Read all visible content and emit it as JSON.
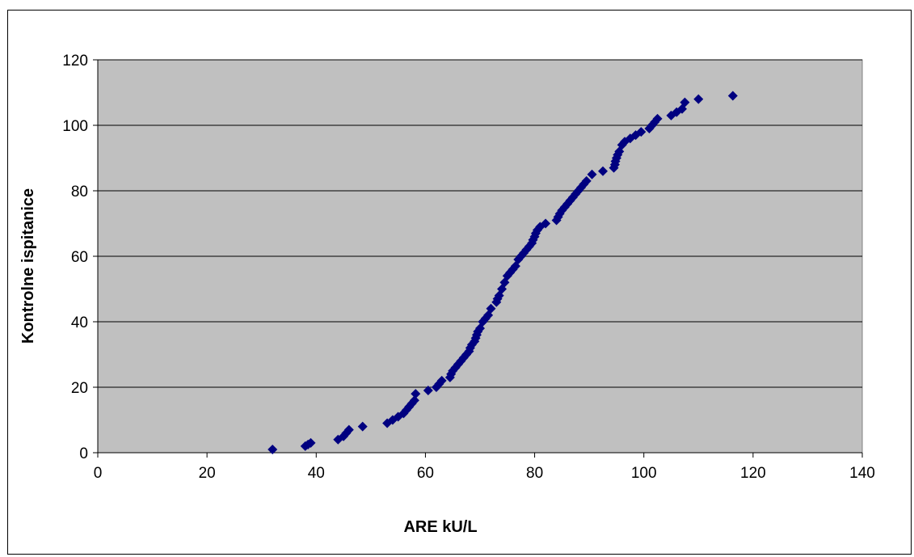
{
  "chart_data": {
    "type": "scatter",
    "title": "",
    "xlabel": "ARE kU/L",
    "ylabel": "Kontrolne ispitanice",
    "xlim": [
      0,
      140
    ],
    "ylim": [
      0,
      120
    ],
    "x_ticks": [
      0,
      20,
      40,
      60,
      80,
      100,
      120,
      140
    ],
    "y_ticks": [
      0,
      20,
      40,
      60,
      80,
      100,
      120
    ],
    "grid": "horizontal",
    "legend": "none",
    "colors": {
      "plot_background": "#c0c0c0",
      "marker": "#000080",
      "gridline": "#000000"
    },
    "marker_shape": "diamond",
    "series": [
      {
        "x": [
          32,
          38,
          38.5,
          39,
          44,
          45,
          45.5,
          46,
          48.5,
          53,
          54,
          55,
          56,
          56.5,
          57,
          57.5,
          58,
          58.2,
          60.5,
          62,
          62.5,
          63,
          64.5,
          64.7,
          65,
          65.5,
          66,
          66.5,
          67,
          67.5,
          68,
          68.2,
          68.5,
          69,
          69.2,
          69.4,
          69.6,
          70,
          70.5,
          71,
          71.5,
          72,
          73,
          73.2,
          73.5,
          74,
          74.5,
          75,
          75.5,
          76,
          76.5,
          77,
          77.5,
          78,
          78.5,
          79,
          79.5,
          79.7,
          80,
          80.2,
          80.5,
          81,
          82,
          84,
          84.3,
          84.6,
          85,
          85.5,
          86,
          86.5,
          87,
          87.5,
          88,
          88.5,
          89,
          89.5,
          90.5,
          92.5,
          94.5,
          94.7,
          94.8,
          95,
          95.2,
          95.5,
          96,
          96.5,
          97.5,
          98.5,
          99.5,
          101,
          101.5,
          102,
          102.5,
          105,
          106,
          107,
          107.5,
          110,
          116.3
        ],
        "y": [
          1,
          2,
          2.5,
          3,
          4,
          5,
          6,
          7,
          8,
          9,
          10,
          11,
          12,
          13,
          14,
          15,
          16,
          18,
          19,
          20,
          21,
          22,
          23,
          24,
          25,
          26,
          27,
          28,
          29,
          30,
          31,
          32,
          33,
          34,
          35,
          36,
          37,
          38,
          40,
          41,
          42,
          44,
          46,
          47,
          48,
          50,
          52,
          54,
          55,
          56,
          57,
          59,
          60,
          61,
          62,
          63,
          64,
          65,
          66,
          67,
          68,
          69,
          70,
          71,
          72,
          73,
          74,
          75,
          76,
          77,
          78,
          79,
          80,
          81,
          82,
          83,
          85,
          86,
          87,
          88,
          89,
          90,
          91,
          92,
          94,
          95,
          96,
          97,
          98,
          99,
          100,
          101,
          102,
          103,
          104,
          105,
          107,
          108,
          109
        ]
      }
    ]
  }
}
